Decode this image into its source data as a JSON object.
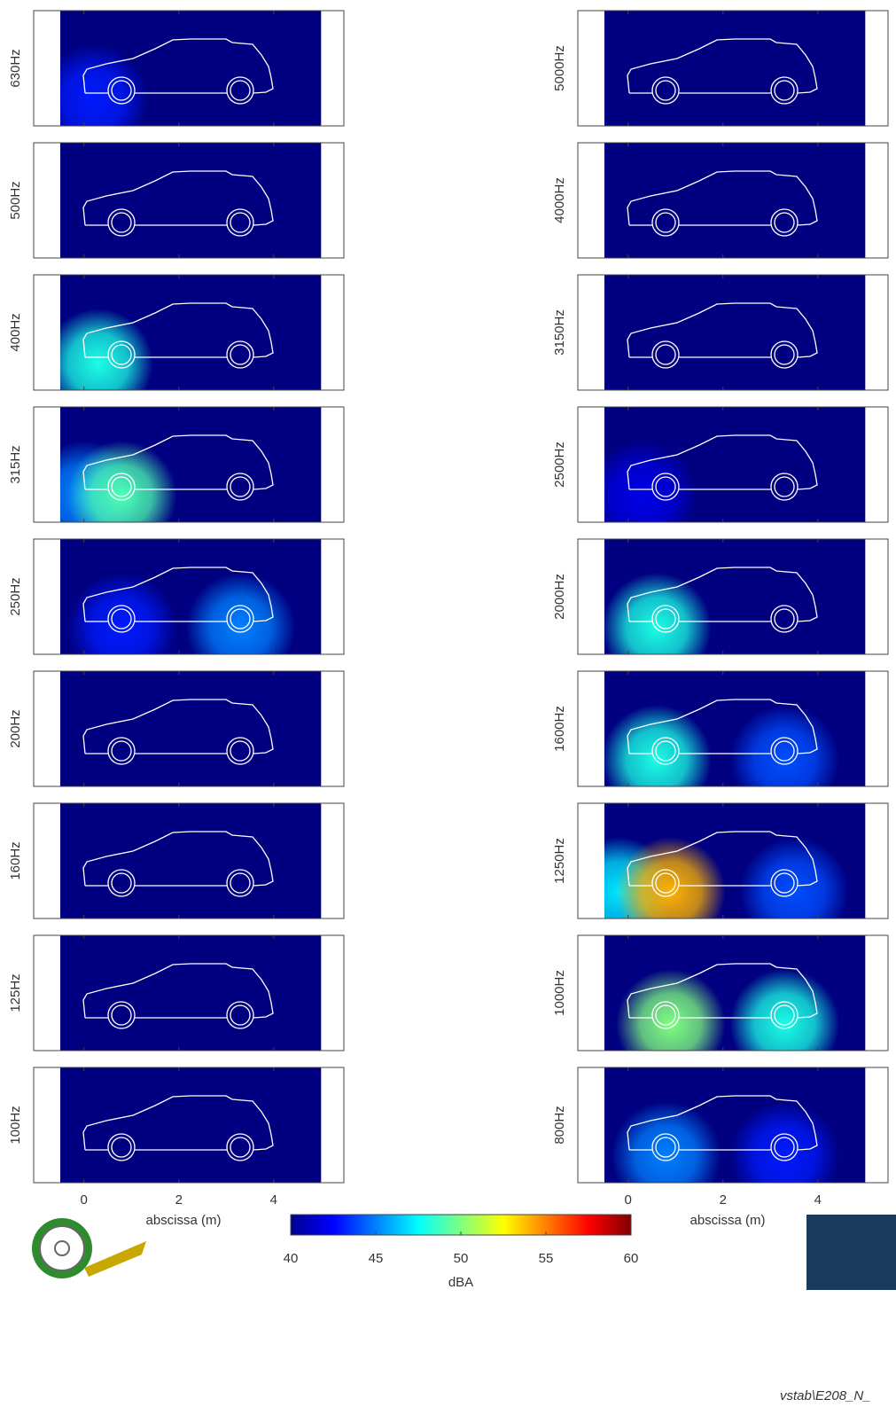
{
  "chart_data": [
    {
      "type": "heatmap",
      "ylabel": "630Hz",
      "xlim": [
        -1.06,
        5.48
      ],
      "xticks": [
        0,
        2,
        4
      ],
      "extent": [
        -0.5,
        5
      ],
      "hotspots": [
        {
          "x": 0.2,
          "level": 43
        }
      ]
    },
    {
      "type": "heatmap",
      "ylabel": "500Hz",
      "xlim": [
        -1.06,
        5.48
      ],
      "xticks": [
        0,
        2,
        4
      ],
      "extent": [
        -0.5,
        5
      ],
      "hotspots": []
    },
    {
      "type": "heatmap",
      "ylabel": "400Hz",
      "xlim": [
        -1.06,
        5.48
      ],
      "xticks": [
        0,
        2,
        4
      ],
      "extent": [
        -0.5,
        5
      ],
      "hotspots": [
        {
          "x": 0.3,
          "level": 48
        }
      ]
    },
    {
      "type": "heatmap",
      "ylabel": "315Hz",
      "xlim": [
        -1.06,
        5.48
      ],
      "xticks": [
        0,
        2,
        4
      ],
      "extent": [
        -0.5,
        5
      ],
      "hotspots": [
        {
          "x": 0.0,
          "level": 45
        },
        {
          "x": 0.8,
          "level": 49
        }
      ]
    },
    {
      "type": "heatmap",
      "ylabel": "250Hz",
      "xlim": [
        -1.06,
        5.48
      ],
      "xticks": [
        0,
        2,
        4
      ],
      "extent": [
        -0.5,
        5
      ],
      "hotspots": [
        {
          "x": 0.8,
          "level": 43
        },
        {
          "x": 3.3,
          "level": 45
        }
      ]
    },
    {
      "type": "heatmap",
      "ylabel": "200Hz",
      "xlim": [
        -1.06,
        5.48
      ],
      "xticks": [
        0,
        2,
        4
      ],
      "extent": [
        -0.5,
        5
      ],
      "hotspots": []
    },
    {
      "type": "heatmap",
      "ylabel": "160Hz",
      "xlim": [
        -1.06,
        5.48
      ],
      "xticks": [
        0,
        2,
        4
      ],
      "extent": [
        -0.5,
        5
      ],
      "hotspots": []
    },
    {
      "type": "heatmap",
      "ylabel": "125Hz",
      "xlim": [
        -1.06,
        5.48
      ],
      "xticks": [
        0,
        2,
        4
      ],
      "extent": [
        -0.5,
        5
      ],
      "hotspots": []
    },
    {
      "type": "heatmap",
      "ylabel": "100Hz",
      "xlabel": "abscissa (m)",
      "xlim": [
        -1.06,
        5.48
      ],
      "xticks": [
        0,
        2,
        4
      ],
      "extent": [
        -0.5,
        5
      ],
      "hotspots": []
    },
    {
      "type": "heatmap",
      "ylabel": "5000Hz",
      "xlim": [
        -1.06,
        5.48
      ],
      "xticks": [
        0,
        2,
        4
      ],
      "extent": [
        -0.5,
        5
      ],
      "hotspots": []
    },
    {
      "type": "heatmap",
      "ylabel": "4000Hz",
      "xlim": [
        -1.06,
        5.48
      ],
      "xticks": [
        0,
        2,
        4
      ],
      "extent": [
        -0.5,
        5
      ],
      "hotspots": []
    },
    {
      "type": "heatmap",
      "ylabel": "3150Hz",
      "xlim": [
        -1.06,
        5.48
      ],
      "xticks": [
        0,
        2,
        4
      ],
      "extent": [
        -0.5,
        5
      ],
      "hotspots": []
    },
    {
      "type": "heatmap",
      "ylabel": "2500Hz",
      "xlim": [
        -1.06,
        5.48
      ],
      "xticks": [
        0,
        2,
        4
      ],
      "extent": [
        -0.5,
        5
      ],
      "hotspots": [
        {
          "x": 0.3,
          "level": 42
        }
      ]
    },
    {
      "type": "heatmap",
      "ylabel": "2000Hz",
      "xlim": [
        -1.06,
        5.48
      ],
      "xticks": [
        0,
        2,
        4
      ],
      "extent": [
        -0.5,
        5
      ],
      "hotspots": [
        {
          "x": 0.6,
          "level": 48
        }
      ]
    },
    {
      "type": "heatmap",
      "ylabel": "1600Hz",
      "xlim": [
        -1.06,
        5.48
      ],
      "xticks": [
        0,
        2,
        4
      ],
      "extent": [
        -0.5,
        5
      ],
      "hotspots": [
        {
          "x": 0.6,
          "level": 48
        },
        {
          "x": 3.3,
          "level": 44
        }
      ]
    },
    {
      "type": "heatmap",
      "ylabel": "1250Hz",
      "xlim": [
        -1.06,
        5.48
      ],
      "xticks": [
        0,
        2,
        4
      ],
      "extent": [
        -0.5,
        5
      ],
      "hotspots": [
        {
          "x": -0.2,
          "level": 47
        },
        {
          "x": 3.5,
          "level": 44
        },
        {
          "x": 0.9,
          "level": 54
        }
      ]
    },
    {
      "type": "heatmap",
      "ylabel": "1000Hz",
      "xlim": [
        -1.06,
        5.48
      ],
      "xticks": [
        0,
        2,
        4
      ],
      "extent": [
        -0.5,
        5
      ],
      "hotspots": [
        {
          "x": 3.3,
          "level": 48
        },
        {
          "x": 0.9,
          "level": 50
        }
      ]
    },
    {
      "type": "heatmap",
      "ylabel": "800Hz",
      "xlabel": "abscissa (m)",
      "xlim": [
        -1.06,
        5.48
      ],
      "xticks": [
        0,
        2,
        4
      ],
      "extent": [
        -0.5,
        5
      ],
      "hotspots": [
        {
          "x": 0.8,
          "level": 45
        },
        {
          "x": 3.3,
          "level": 43
        }
      ]
    }
  ],
  "colorbar": {
    "label": "dBA",
    "lim": [
      40,
      60
    ],
    "ticks": [
      40,
      45,
      50,
      55,
      60
    ]
  },
  "footer": "vstab\\E208_N_"
}
